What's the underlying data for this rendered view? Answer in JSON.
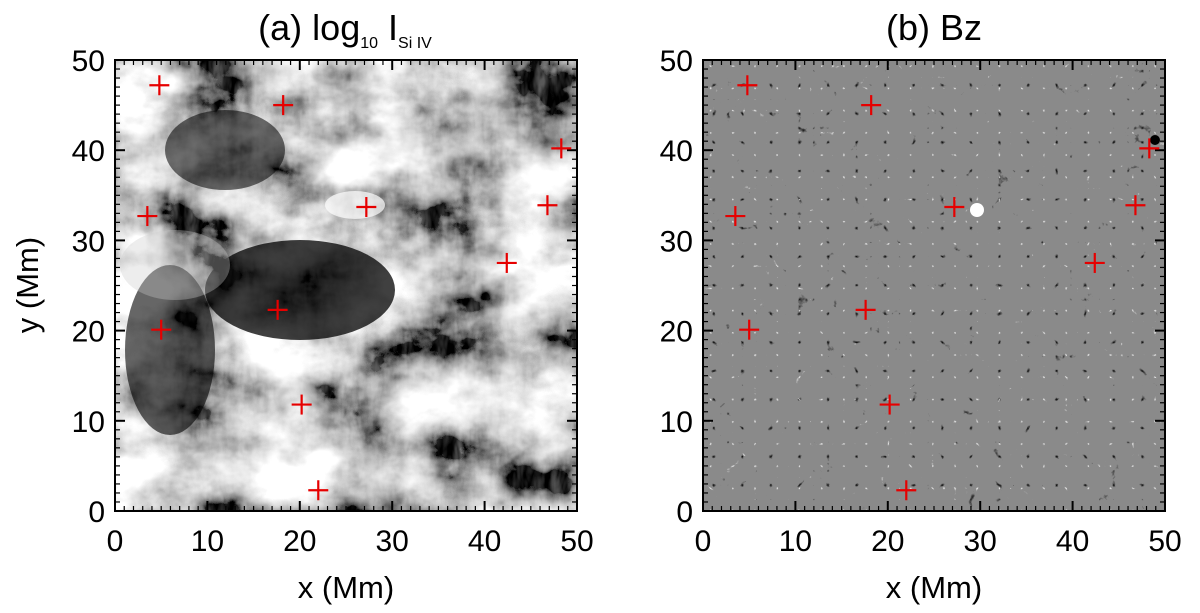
{
  "figure": {
    "panels": [
      {
        "id": "a",
        "title_main": "(a) log",
        "title_sub1": "10",
        "title_mid": " I",
        "title_sub2": "Si IV",
        "image": "grayscale-intensity-map"
      },
      {
        "id": "b",
        "title_main": "(b) Bz",
        "image": "grayscale-magnetogram"
      }
    ],
    "xlabel": "x (Mm)",
    "ylabel": "y (Mm)",
    "colors": {
      "marker": "#e60000",
      "magnetogram_background": "#8a8a8a",
      "frame": "#000000"
    }
  },
  "chart_data": [
    {
      "type": "scatter",
      "title": "(a) log10 I Si IV",
      "xlabel": "x (Mm)",
      "ylabel": "y (Mm)",
      "xlim": [
        0,
        50
      ],
      "ylim": [
        0,
        50
      ],
      "xticks": [
        0,
        10,
        20,
        30,
        40,
        50
      ],
      "yticks": [
        0,
        10,
        20,
        30,
        40,
        50
      ],
      "marker": "+",
      "marker_color": "#e60000",
      "points": [
        {
          "x": 4.8,
          "y": 47.2
        },
        {
          "x": 18.2,
          "y": 45.0
        },
        {
          "x": 48.3,
          "y": 40.2
        },
        {
          "x": 27.2,
          "y": 33.7
        },
        {
          "x": 3.5,
          "y": 32.7
        },
        {
          "x": 46.8,
          "y": 33.9
        },
        {
          "x": 42.4,
          "y": 27.5
        },
        {
          "x": 17.6,
          "y": 22.3
        },
        {
          "x": 5.0,
          "y": 20.1
        },
        {
          "x": 20.2,
          "y": 11.8
        },
        {
          "x": 22.0,
          "y": 2.3
        }
      ]
    },
    {
      "type": "scatter",
      "title": "(b) Bz",
      "xlabel": "x (Mm)",
      "ylabel": "",
      "xlim": [
        0,
        50
      ],
      "ylim": [
        0,
        50
      ],
      "xticks": [
        0,
        10,
        20,
        30,
        40,
        50
      ],
      "yticks": [
        0,
        10,
        20,
        30,
        40,
        50
      ],
      "marker": "+",
      "marker_color": "#e60000",
      "points": [
        {
          "x": 4.8,
          "y": 47.2
        },
        {
          "x": 18.2,
          "y": 45.0
        },
        {
          "x": 48.3,
          "y": 40.2
        },
        {
          "x": 27.2,
          "y": 33.7
        },
        {
          "x": 3.5,
          "y": 32.7
        },
        {
          "x": 46.8,
          "y": 33.9
        },
        {
          "x": 42.4,
          "y": 27.5
        },
        {
          "x": 17.6,
          "y": 22.3
        },
        {
          "x": 5.0,
          "y": 20.1
        },
        {
          "x": 20.2,
          "y": 11.8
        },
        {
          "x": 22.0,
          "y": 2.3
        }
      ]
    }
  ]
}
